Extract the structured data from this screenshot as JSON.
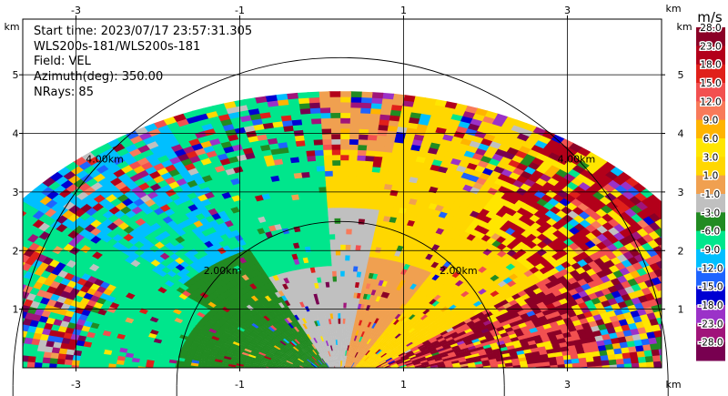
{
  "chart_data": {
    "type": "heatmap",
    "title_lines": {
      "start_time": "Start time: 2023/07/17 23:57:31.305",
      "instrument": "WLS200s-181/WLS200s-181",
      "field": "Field: VEL",
      "azimuth": "Azimuth(deg): 350.00",
      "nrays": "NRays: 85"
    },
    "xlim": [
      -3.65,
      4.15
    ],
    "ylim": [
      0.0,
      5.95
    ],
    "x_ticks": [
      -3,
      -1,
      1,
      3
    ],
    "y_ticks": [
      1,
      2,
      3,
      4,
      5
    ],
    "x_unit": "km",
    "y_unit": "km",
    "range_rings": [
      {
        "radius_km": 2.0,
        "label": "2.00km"
      },
      {
        "radius_km": 4.0,
        "label": "4.00km"
      }
    ],
    "max_range_km": 5.0,
    "colorbar": {
      "unit": "m/s",
      "tick_labels": [
        "28.0",
        "23.0",
        "18.0",
        "15.0",
        "12.0",
        "9.0",
        "6.0",
        "3.0",
        "1.0",
        "-1.0",
        "-3.0",
        "-6.0",
        "-9.0",
        "-12.0",
        "-15.0",
        "-18.0",
        "-23.0",
        "-28.0"
      ],
      "colors": [
        "#8b0026",
        "#b3001a",
        "#e0201a",
        "#f25050",
        "#f87a5a",
        "#ffb400",
        "#ffe600",
        "#ffd700",
        "#f0a050",
        "#c0c0c0",
        "#228b22",
        "#00e68c",
        "#00bfff",
        "#1e64ff",
        "#0000d2",
        "#9b32c8",
        "#a0147a",
        "#780050"
      ]
    }
  }
}
